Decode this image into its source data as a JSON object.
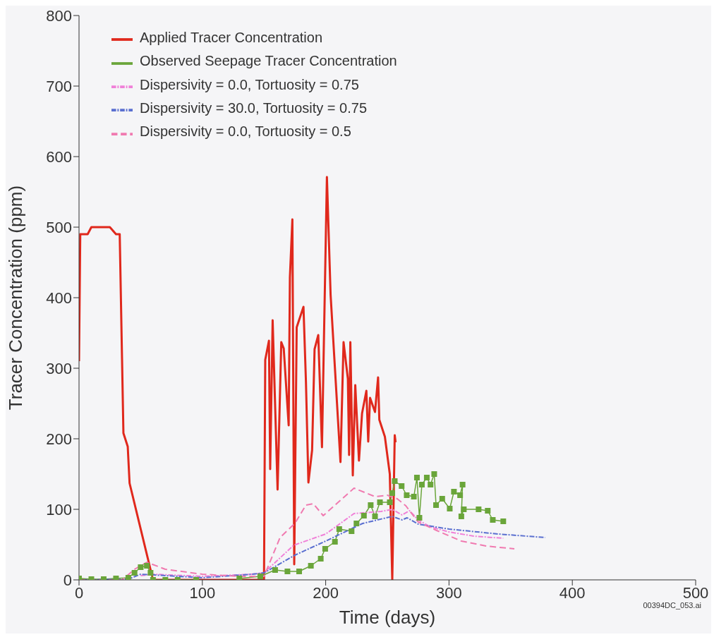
{
  "chart_data": {
    "type": "line",
    "xlabel": "Time (days)",
    "ylabel": "Tracer Concentration (ppm)",
    "xlim": [
      0,
      500
    ],
    "xticks": [
      0,
      100,
      200,
      300,
      400,
      500
    ],
    "ylim": [
      0,
      800
    ],
    "yticks": [
      0,
      100,
      200,
      300,
      400,
      500,
      600,
      700,
      800
    ],
    "grid": false,
    "legend": "top left",
    "annotations": [
      "00394DC_053.ai"
    ],
    "series": [
      {
        "name": "Applied Tracer Concentration",
        "color": "#e0281c",
        "line_style": "solid",
        "marker": "none",
        "x": [
          0,
          1,
          7,
          10,
          25,
          30,
          33,
          36,
          39.5,
          41,
          60,
          100,
          149,
          150,
          151,
          154,
          155,
          157,
          161,
          164,
          166,
          170,
          171,
          173,
          174.5,
          176.5,
          182,
          184,
          186,
          189,
          191,
          194,
          197,
          201,
          204,
          212,
          214.5,
          218,
          219,
          220,
          222,
          224,
          227,
          229.5,
          233,
          234.5,
          236,
          240,
          242.5,
          243.5,
          248,
          252,
          254,
          256,
          256.7
        ],
        "values": [
          310,
          490,
          490,
          500,
          500,
          490,
          490,
          208,
          189,
          137,
          0,
          0,
          0,
          0,
          312,
          339,
          157,
          368,
          128,
          337,
          328,
          219,
          429,
          511,
          22,
          358,
          387,
          281,
          138,
          184,
          327,
          347,
          188,
          571,
          404,
          167,
          337,
          285,
          177,
          337,
          148,
          276,
          169,
          236,
          268,
          196,
          258,
          238,
          287,
          227,
          203,
          150,
          0,
          205,
          195
        ]
      },
      {
        "name": "Observed Seepage Tracer Concentration",
        "color": "#6aa53a",
        "line_style": "solid",
        "marker": "square",
        "x": [
          0,
          10,
          20,
          30,
          40,
          45,
          50,
          55,
          58,
          60,
          70,
          80,
          95,
          110,
          130,
          147,
          159,
          169,
          178.5,
          188,
          196,
          199.6,
          207.5,
          211,
          221,
          225,
          231,
          236.5,
          240,
          244,
          252,
          254,
          256,
          261.6,
          265.7,
          271.5,
          274,
          276,
          278,
          282,
          285,
          288,
          289.5,
          294.5,
          300.6,
          304,
          309,
          311,
          310,
          312,
          324,
          331.4,
          335.5,
          344
        ],
        "values": [
          2,
          1,
          1,
          2,
          3,
          10,
          18,
          20,
          10,
          0,
          0,
          0,
          0,
          null,
          2,
          5,
          14,
          12,
          12,
          20,
          30,
          44,
          54,
          72,
          69,
          80,
          91,
          106,
          90,
          110,
          110,
          123,
          140,
          133,
          120,
          118,
          145,
          88,
          135,
          145,
          135,
          150,
          106,
          115,
          101,
          125,
          120,
          135,
          90,
          100,
          100,
          98,
          85,
          83
        ]
      },
      {
        "name": "Dispersivity = 0.0, Tortuosity = 0.75",
        "color": "#f080d8",
        "line_style": "dashdot",
        "marker": "none",
        "x": [
          50,
          60,
          100,
          140,
          150,
          174,
          200,
          223,
          245,
          254,
          262,
          268,
          275,
          285,
          300,
          320,
          344
        ],
        "values": [
          6,
          8,
          5,
          8,
          10,
          49,
          65,
          94,
          97,
          100,
          92,
          98,
          85,
          75,
          68,
          62,
          59
        ]
      },
      {
        "name": "Dispersivity = 30.0, Tortuosity = 0.75",
        "color": "#5a6fd0",
        "line_style": "dashdot",
        "marker": "none",
        "x": [
          0,
          40,
          50,
          100,
          140,
          150,
          175,
          200,
          230,
          254,
          262,
          266,
          275,
          300,
          340,
          378
        ],
        "values": [
          0,
          1,
          8,
          3,
          8,
          10,
          35,
          55,
          80,
          90,
          85,
          88,
          79,
          72,
          65,
          60
        ]
      },
      {
        "name": "Dispersivity = 0.0, Tortuosity = 0.5",
        "color": "#f07ab0",
        "line_style": "dashed",
        "marker": "none",
        "x": [
          0,
          35,
          45,
          55,
          70,
          100,
          130,
          150,
          163,
          175,
          184,
          190,
          198,
          223,
          240,
          250,
          258,
          265,
          275,
          290,
          310,
          330,
          353
        ],
        "values": [
          0,
          0,
          15,
          25,
          15,
          8,
          5,
          5,
          60,
          80,
          106,
          108,
          91,
          130,
          118,
          120,
          115,
          105,
          82,
          70,
          55,
          48,
          44
        ]
      }
    ]
  }
}
